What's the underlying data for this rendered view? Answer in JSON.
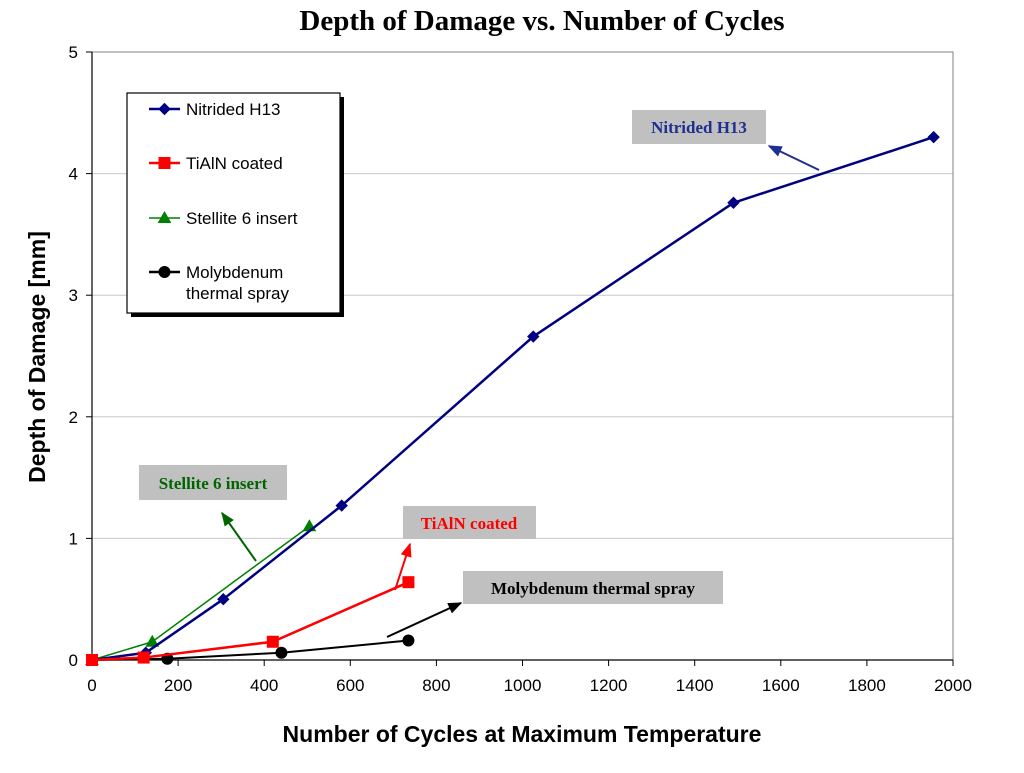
{
  "chart_data": {
    "type": "line",
    "title": "Depth of Damage vs. Number of Cycles",
    "xlabel": "Number of Cycles at Maximum Temperature",
    "ylabel": "Depth of Damage [mm]",
    "xlim": [
      0,
      2000
    ],
    "ylim": [
      0,
      5
    ],
    "xticks": [
      0,
      200,
      400,
      600,
      800,
      1000,
      1200,
      1400,
      1600,
      1800,
      2000
    ],
    "yticks": [
      0,
      1,
      2,
      3,
      4,
      5
    ],
    "grid": "horizontal",
    "legend_position": "top-left",
    "series": [
      {
        "name": "Nitrided H13",
        "color": "#000080",
        "marker": "diamond",
        "points": [
          [
            0,
            0
          ],
          [
            125,
            0.06
          ],
          [
            305,
            0.5
          ],
          [
            580,
            1.27
          ],
          [
            1025,
            2.66
          ],
          [
            1490,
            3.76
          ],
          [
            1955,
            4.3
          ]
        ]
      },
      {
        "name": "TiAlN coated",
        "color": "#ff0000",
        "marker": "square",
        "points": [
          [
            0,
            0
          ],
          [
            120,
            0.02
          ],
          [
            420,
            0.15
          ],
          [
            735,
            0.64
          ]
        ]
      },
      {
        "name": "Stellite 6 insert",
        "color": "#008000",
        "marker": "triangle",
        "points": [
          [
            0,
            0
          ],
          [
            140,
            0.15
          ],
          [
            505,
            1.1
          ]
        ]
      },
      {
        "name": "Molybdenum\nthermal spray",
        "color": "#000000",
        "marker": "circle",
        "points": [
          [
            0,
            0
          ],
          [
            175,
            0.01
          ],
          [
            440,
            0.06
          ],
          [
            735,
            0.16
          ]
        ]
      }
    ],
    "annotations": [
      {
        "text": "Nitrided H13",
        "color": "#1f2f8f"
      },
      {
        "text": "Stellite 6 insert",
        "color": "#006400"
      },
      {
        "text": "TiAlN coated",
        "color": "#ff0000"
      },
      {
        "text": "Molybdenum thermal spray",
        "color": "#000000"
      }
    ]
  }
}
